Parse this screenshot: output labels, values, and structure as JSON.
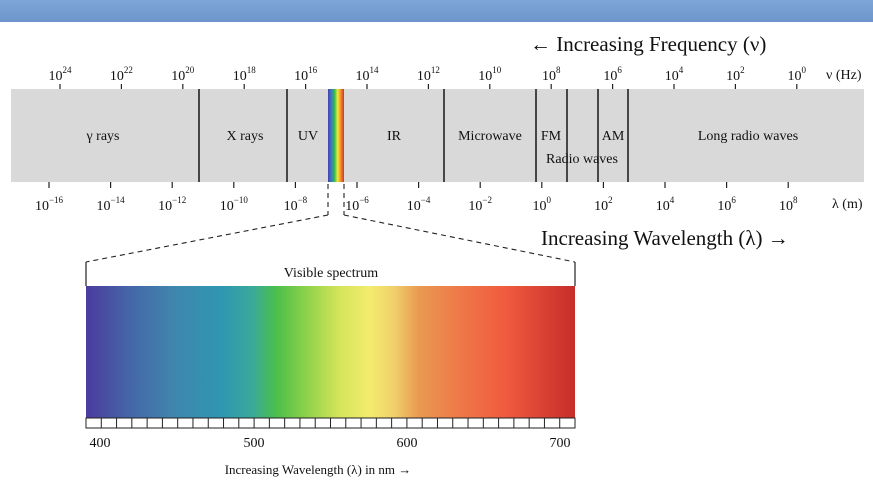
{
  "colors": {
    "band": "#d9d9d9",
    "top_bar": "#7fa6d8"
  },
  "frequency": {
    "title": "← Increasing Frequency (ν)",
    "unit": "ν (Hz)",
    "ticks": [
      {
        "base": "10",
        "exp": "24"
      },
      {
        "base": "10",
        "exp": "22"
      },
      {
        "base": "10",
        "exp": "20"
      },
      {
        "base": "10",
        "exp": "18"
      },
      {
        "base": "10",
        "exp": "16"
      },
      {
        "base": "10",
        "exp": "14"
      },
      {
        "base": "10",
        "exp": "12"
      },
      {
        "base": "10",
        "exp": "10"
      },
      {
        "base": "10",
        "exp": "8"
      },
      {
        "base": "10",
        "exp": "6"
      },
      {
        "base": "10",
        "exp": "4"
      },
      {
        "base": "10",
        "exp": "2"
      },
      {
        "base": "10",
        "exp": "0"
      }
    ]
  },
  "wavelength": {
    "title": "Increasing Wavelength (λ) →",
    "unit": "λ (m)",
    "ticks": [
      {
        "base": "10",
        "exp": "−16"
      },
      {
        "base": "10",
        "exp": "−14"
      },
      {
        "base": "10",
        "exp": "−12"
      },
      {
        "base": "10",
        "exp": "−10"
      },
      {
        "base": "10",
        "exp": "−8"
      },
      {
        "base": "10",
        "exp": "−6"
      },
      {
        "base": "10",
        "exp": "−4"
      },
      {
        "base": "10",
        "exp": "−2"
      },
      {
        "base": "10",
        "exp": "0"
      },
      {
        "base": "10",
        "exp": "2"
      },
      {
        "base": "10",
        "exp": "4"
      },
      {
        "base": "10",
        "exp": "6"
      },
      {
        "base": "10",
        "exp": "8"
      }
    ]
  },
  "regions": {
    "gamma": "γ rays",
    "xray": "X rays",
    "uv": "UV",
    "ir": "IR",
    "microwave": "Microwave",
    "fm": "FM",
    "am": "AM",
    "radio": "Radio waves",
    "long_radio": "Long radio waves"
  },
  "visible": {
    "title": "Visible spectrum",
    "axis_label": "Increasing Wavelength (λ) in nm →",
    "ticks": [
      "400",
      "500",
      "600",
      "700"
    ]
  }
}
